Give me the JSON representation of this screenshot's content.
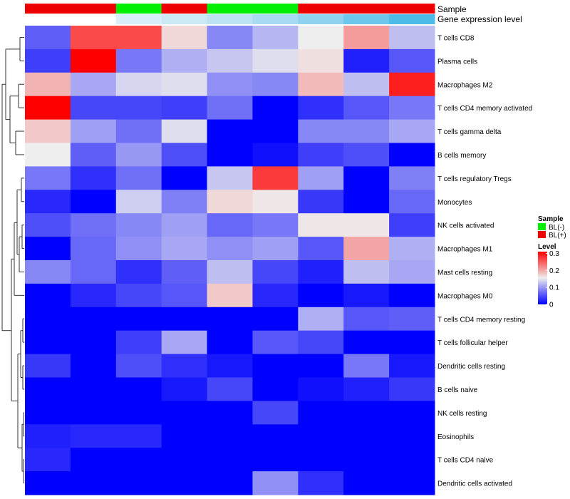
{
  "chart_data": {
    "type": "heatmap",
    "annotation_titles": {
      "sample": "Sample",
      "gene": "Gene expression level"
    },
    "sample_annotation": [
      "BL(+)",
      "BL(+)",
      "BL(-)",
      "BL(+)",
      "BL(-)",
      "BL(-)",
      "BL(+)",
      "BL(+)",
      "BL(+)"
    ],
    "sample_colors": {
      "BL(-)": "#00ee00",
      "BL(+)": "#ee0000"
    },
    "gene_expression_colors": [
      "#ffffff",
      "#ffffff",
      "#d8eef8",
      "#cbe8f5",
      "#bce2f3",
      "#a8dbf2",
      "#8fd2f0",
      "#6dc6ec",
      "#4dbbe8"
    ],
    "rows": [
      "T cells CD8",
      "Plasma cells",
      "Macrophages M2",
      "T cells CD4 memory activated",
      "T cells gamma delta",
      "B cells memory",
      "T cells regulatory  Tregs",
      "Monocytes",
      "NK cells activated",
      "Macrophages M1",
      "Mast cells resting",
      "Macrophages M0",
      "T cells CD4 memory resting",
      "T cells follicular helper",
      "Dendritic cells resting",
      "B cells naive",
      "NK cells resting",
      "Eosinophils",
      "T cells CD4 naive",
      "Dendritic cells activated"
    ],
    "values": [
      [
        0.06,
        0.26,
        0.26,
        0.165,
        0.085,
        0.115,
        0.15,
        0.205,
        0.12
      ],
      [
        0.04,
        0.31,
        0.075,
        0.11,
        0.125,
        0.14,
        0.16,
        0.02,
        0.055
      ],
      [
        0.19,
        0.105,
        0.135,
        0.14,
        0.09,
        0.085,
        0.185,
        0.12,
        0.29
      ],
      [
        0.31,
        0.045,
        0.045,
        0.04,
        0.07,
        0.0,
        0.03,
        0.055,
        0.075
      ],
      [
        0.175,
        0.1,
        0.07,
        0.14,
        0.0,
        0.0,
        0.085,
        0.085,
        0.105
      ],
      [
        0.15,
        0.06,
        0.095,
        0.05,
        0.0,
        0.01,
        0.04,
        0.05,
        0.0
      ],
      [
        0.075,
        0.03,
        0.07,
        0.0,
        0.125,
        0.27,
        0.1,
        0.0,
        0.08
      ],
      [
        0.025,
        0.0,
        0.13,
        0.08,
        0.165,
        0.155,
        0.035,
        0.0,
        0.065
      ],
      [
        0.05,
        0.07,
        0.085,
        0.1,
        0.065,
        0.075,
        0.155,
        0.155,
        0.04
      ],
      [
        0.0,
        0.065,
        0.09,
        0.105,
        0.09,
        0.1,
        0.055,
        0.2,
        0.11
      ],
      [
        0.085,
        0.065,
        0.03,
        0.06,
        0.12,
        0.045,
        0.02,
        0.12,
        0.105
      ],
      [
        0.0,
        0.025,
        0.045,
        0.055,
        0.175,
        0.025,
        0.0,
        0.015,
        0.0
      ],
      [
        0.0,
        0.0,
        0.0,
        0.0,
        0.0,
        0.0,
        0.11,
        0.055,
        0.06
      ],
      [
        0.0,
        0.0,
        0.04,
        0.105,
        0.0,
        0.055,
        0.045,
        0.0,
        0.0
      ],
      [
        0.035,
        0.0,
        0.05,
        0.03,
        0.015,
        0.0,
        0.0,
        0.075,
        0.015
      ],
      [
        0.0,
        0.0,
        0.0,
        0.015,
        0.045,
        0.0,
        0.01,
        0.02,
        0.035
      ],
      [
        0.0,
        0.0,
        0.0,
        0.0,
        0.0,
        0.045,
        0.0,
        0.0,
        0.0
      ],
      [
        0.02,
        0.025,
        0.025,
        0.0,
        0.0,
        0.0,
        0.0,
        0.0,
        0.0
      ],
      [
        0.025,
        0.0,
        0.0,
        0.0,
        0.0,
        0.0,
        0.0,
        0.0,
        0.0
      ],
      [
        0.0,
        0.0,
        0.0,
        0.0,
        0.0,
        0.09,
        0.03,
        0.0,
        0.0
      ]
    ],
    "color_scale": {
      "min": 0,
      "mid": 0.15,
      "max": 0.31,
      "low": "#0000ff",
      "mid_color": "#eeeeee",
      "high": "#ff0000"
    },
    "legend": {
      "sample_title": "Sample",
      "sample_items": [
        {
          "label": "BL(-)",
          "color": "#00ee00"
        },
        {
          "label": "BL(+)",
          "color": "#ee0000"
        }
      ],
      "level_title": "Level",
      "level_ticks": [
        "0.3",
        "0.2",
        "0.1",
        "0"
      ],
      "level_tick_values": [
        0.3,
        0.2,
        0.1,
        0.0
      ]
    },
    "row_dendrogram": true
  }
}
